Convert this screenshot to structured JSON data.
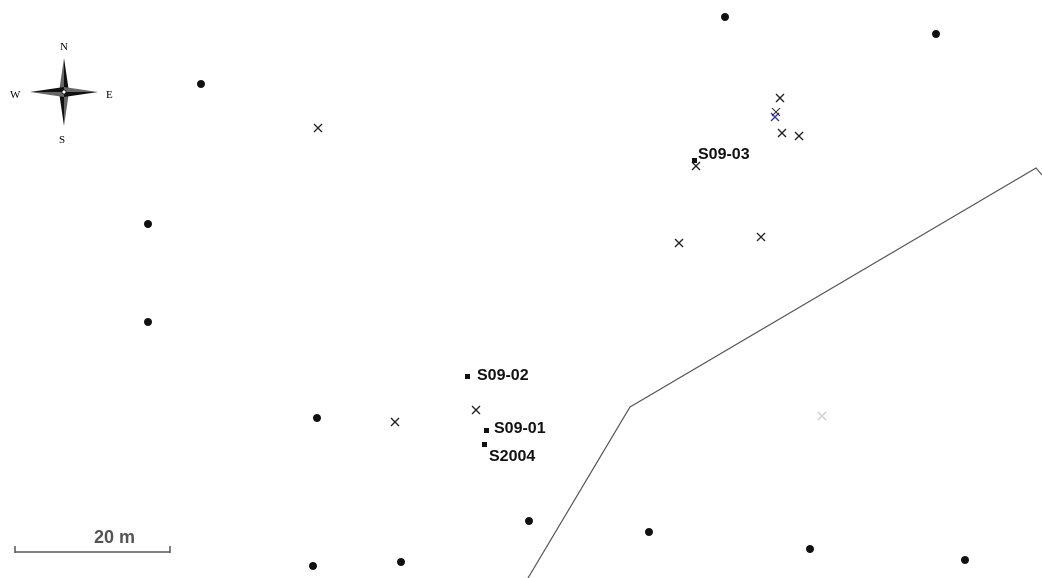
{
  "compass": {
    "north": "N",
    "south": "S",
    "east": "E",
    "west": "W",
    "icon": "compass-rose-icon"
  },
  "scale_bar": {
    "label": "20 m",
    "icon": "scale-bar-icon"
  },
  "sites": {
    "s09_03": "S09-03",
    "s09_02": "S09-02",
    "s09_01": "S09-01",
    "s2004": "S2004"
  },
  "colors": {
    "background": "#ffffff",
    "points": "#111111",
    "cross": "#222222",
    "cross_highlight": "#3333aa",
    "cross_faded": "#cccccc",
    "boundary": "#555555",
    "scale_text": "#555555"
  },
  "markers": {
    "point_icon": "black-dot-icon",
    "cross_icon": "x-cross-icon",
    "site_icon": "square-marker-icon"
  }
}
